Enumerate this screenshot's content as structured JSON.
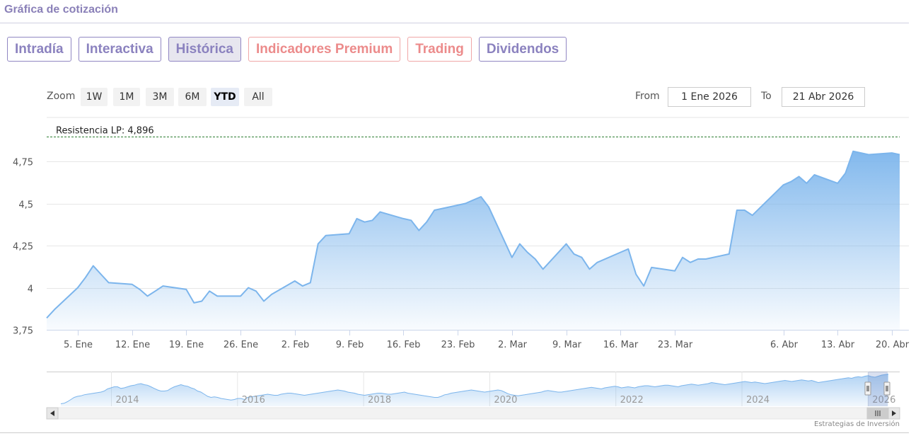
{
  "header": {
    "title": "Gráfica de cotización"
  },
  "tabs": [
    {
      "label": "Intradía",
      "kind": "normal"
    },
    {
      "label": "Interactiva",
      "kind": "normal"
    },
    {
      "label": "Histórica",
      "kind": "active"
    },
    {
      "label": "Indicadores Premium",
      "kind": "premium"
    },
    {
      "label": "Trading",
      "kind": "premium"
    },
    {
      "label": "Dividendos",
      "kind": "normal"
    }
  ],
  "toolbar": {
    "zoom_label": "Zoom",
    "zoom_buttons": [
      "1W",
      "1M",
      "3M",
      "6M",
      "YTD",
      "All"
    ],
    "selected_zoom": "YTD",
    "from_label": "From",
    "from_value": "1 Ene 2026",
    "to_label": "To",
    "to_value": "21 Abr 2026"
  },
  "credit": "Estrategias de Inversión",
  "colors": {
    "series_line": "#7cb5ec",
    "area_top": "#7cb5ec",
    "resistance_line": "#2e7d32",
    "tab_accent": "#8b82bf",
    "premium_accent": "#ec8b8b"
  },
  "icons": {
    "scroll_left": "arrow-left-icon",
    "scroll_right": "arrow-right-icon",
    "scroll_grip": "grip-icon",
    "nav_handle": "handle-icon"
  },
  "chart_data": {
    "type": "area",
    "x_range": [
      "2026-01-01",
      "2026-04-21"
    ],
    "ylim": [
      3.75,
      4.9
    ],
    "y_ticks": [
      {
        "value": 3.75,
        "label": "3,75"
      },
      {
        "value": 4.0,
        "label": "4"
      },
      {
        "value": 4.25,
        "label": "4,25"
      },
      {
        "value": 4.5,
        "label": "4,5"
      },
      {
        "value": 4.75,
        "label": "4,75"
      }
    ],
    "x_ticks": [
      {
        "date": "2026-01-05",
        "label": "5. Ene"
      },
      {
        "date": "2026-01-12",
        "label": "12. Ene"
      },
      {
        "date": "2026-01-19",
        "label": "19. Ene"
      },
      {
        "date": "2026-01-26",
        "label": "26. Ene"
      },
      {
        "date": "2026-02-02",
        "label": "2. Feb"
      },
      {
        "date": "2026-02-09",
        "label": "9. Feb"
      },
      {
        "date": "2026-02-16",
        "label": "16. Feb"
      },
      {
        "date": "2026-02-23",
        "label": "23. Feb"
      },
      {
        "date": "2026-03-02",
        "label": "2. Mar"
      },
      {
        "date": "2026-03-09",
        "label": "9. Mar"
      },
      {
        "date": "2026-03-16",
        "label": "16. Mar"
      },
      {
        "date": "2026-03-23",
        "label": "23. Mar"
      },
      {
        "date": "2026-04-06",
        "label": "6. Abr"
      },
      {
        "date": "2026-04-13",
        "label": "13. Abr"
      },
      {
        "date": "2026-04-20",
        "label": "20. Abr"
      }
    ],
    "resistance": {
      "label": "Resistencia LP: 4,896",
      "value": 4.896
    },
    "series": [
      {
        "x": [
          "2026-01-01",
          "2026-01-02",
          "2026-01-05",
          "2026-01-06",
          "2026-01-07",
          "2026-01-08",
          "2026-01-09",
          "2026-01-12",
          "2026-01-13",
          "2026-01-14",
          "2026-01-15",
          "2026-01-16",
          "2026-01-19",
          "2026-01-20",
          "2026-01-21",
          "2026-01-22",
          "2026-01-23",
          "2026-01-26",
          "2026-01-27",
          "2026-01-28",
          "2026-01-29",
          "2026-01-30",
          "2026-02-02",
          "2026-02-03",
          "2026-02-04",
          "2026-02-05",
          "2026-02-06",
          "2026-02-09",
          "2026-02-10",
          "2026-02-11",
          "2026-02-12",
          "2026-02-13",
          "2026-02-16",
          "2026-02-17",
          "2026-02-18",
          "2026-02-19",
          "2026-02-20",
          "2026-02-23",
          "2026-02-24",
          "2026-02-25",
          "2026-02-26",
          "2026-02-27",
          "2026-03-02",
          "2026-03-03",
          "2026-03-04",
          "2026-03-05",
          "2026-03-06",
          "2026-03-09",
          "2026-03-10",
          "2026-03-11",
          "2026-03-12",
          "2026-03-13",
          "2026-03-16",
          "2026-03-17",
          "2026-03-18",
          "2026-03-19",
          "2026-03-20",
          "2026-03-23",
          "2026-03-24",
          "2026-03-25",
          "2026-03-26",
          "2026-03-27",
          "2026-03-30",
          "2026-03-31",
          "2026-04-01",
          "2026-04-02",
          "2026-04-06",
          "2026-04-07",
          "2026-04-08",
          "2026-04-09",
          "2026-04-10",
          "2026-04-13",
          "2026-04-14",
          "2026-04-15",
          "2026-04-16",
          "2026-04-17",
          "2026-04-20",
          "2026-04-21"
        ],
        "values": [
          3.82,
          3.87,
          4.0,
          4.06,
          4.13,
          4.08,
          4.03,
          4.02,
          3.99,
          3.95,
          3.98,
          4.01,
          3.99,
          3.91,
          3.92,
          3.98,
          3.95,
          3.95,
          4.0,
          3.98,
          3.92,
          3.96,
          4.04,
          4.01,
          4.03,
          4.26,
          4.31,
          4.32,
          4.41,
          4.39,
          4.4,
          4.45,
          4.41,
          4.4,
          4.34,
          4.39,
          4.46,
          4.49,
          4.5,
          4.52,
          4.54,
          4.48,
          4.18,
          4.26,
          4.21,
          4.17,
          4.11,
          4.26,
          4.2,
          4.18,
          4.11,
          4.15,
          4.21,
          4.23,
          4.08,
          4.01,
          4.12,
          4.1,
          4.18,
          4.15,
          4.17,
          4.17,
          4.2,
          4.46,
          4.46,
          4.43,
          4.61,
          4.63,
          4.66,
          4.62,
          4.67,
          4.62,
          4.68,
          4.81,
          4.8,
          4.79,
          4.8,
          4.79
        ]
      }
    ],
    "navigator": {
      "year_labels": [
        "2014",
        "2016",
        "2018",
        "2020",
        "2022",
        "2024",
        "2026"
      ],
      "values": [
        3.1,
        3.15,
        3.3,
        3.5,
        3.7,
        3.8,
        3.85,
        3.95,
        4.0,
        4.05,
        4.1,
        4.15,
        4.2,
        4.3,
        4.5,
        4.6,
        4.7,
        4.7,
        4.55,
        4.6,
        4.7,
        4.8,
        4.85,
        4.95,
        5.0,
        4.9,
        4.85,
        4.7,
        4.55,
        4.4,
        4.3,
        4.3,
        4.35,
        4.55,
        4.7,
        4.8,
        4.9,
        4.8,
        4.75,
        4.6,
        4.5,
        4.3,
        4.2,
        4.0,
        3.8,
        3.7,
        3.75,
        3.7,
        3.6,
        3.55,
        3.5,
        3.45,
        3.5,
        3.6,
        3.6,
        3.5,
        3.7,
        3.75,
        3.8,
        3.85,
        3.9,
        3.95,
        4.0,
        3.95,
        3.9,
        3.9,
        4.0,
        4.05,
        4.1,
        4.1,
        4.05,
        4.0,
        3.95,
        3.9,
        3.95,
        4.0,
        4.05,
        4.1,
        4.15,
        4.2,
        4.25,
        4.3,
        4.35,
        4.4,
        4.35,
        4.3,
        4.2,
        4.15,
        4.1,
        4.0,
        3.95,
        3.9,
        3.95,
        4.0,
        4.05,
        4.1,
        4.1,
        4.05,
        4.0,
        4.0,
        4.05,
        4.1,
        4.15,
        4.2,
        4.1,
        4.05,
        4.0,
        3.95,
        3.9,
        3.85,
        3.8,
        3.75,
        3.7,
        3.7,
        3.8,
        3.95,
        4.0,
        4.1,
        4.15,
        4.2,
        4.25,
        4.3,
        4.35,
        4.4,
        4.35,
        4.3,
        4.25,
        4.2,
        4.25,
        4.3,
        4.35,
        4.4,
        4.35,
        4.2,
        4.05,
        3.95,
        3.9,
        3.85,
        3.9,
        3.95,
        4.0,
        4.05,
        4.1,
        4.15,
        4.2,
        4.3,
        4.35,
        4.3,
        4.25,
        4.2,
        4.2,
        4.25,
        4.3,
        4.35,
        4.4,
        4.45,
        4.5,
        4.55,
        4.6,
        4.65,
        4.6,
        4.55,
        4.5,
        4.6,
        4.65,
        4.7,
        4.75,
        4.7,
        4.6,
        4.65,
        4.7,
        4.65,
        4.6,
        4.7,
        4.75,
        4.8,
        4.8,
        4.75,
        4.7,
        4.75,
        4.8,
        4.85,
        4.85,
        4.8,
        4.75,
        4.7,
        4.8,
        4.85,
        4.9,
        4.95,
        4.9,
        4.85,
        4.9,
        4.95,
        5.0,
        5.1,
        5.05,
        5.0,
        4.95,
        4.9,
        4.95,
        5.0,
        5.05,
        5.1,
        5.15,
        5.2,
        5.15,
        5.1,
        5.15,
        5.1,
        5.05,
        5.0,
        5.05,
        5.1,
        5.15,
        5.2,
        5.25,
        5.3,
        5.25,
        5.2,
        5.25,
        5.3,
        5.35,
        5.3,
        5.25,
        5.3,
        5.2,
        5.1,
        5.15,
        5.2,
        5.25,
        5.3,
        5.35,
        5.4,
        5.45,
        5.5,
        5.55,
        5.5,
        5.6,
        5.65,
        5.6,
        5.7,
        5.75,
        5.65,
        5.6,
        5.7,
        5.8,
        5.85,
        5.9
      ]
    }
  }
}
